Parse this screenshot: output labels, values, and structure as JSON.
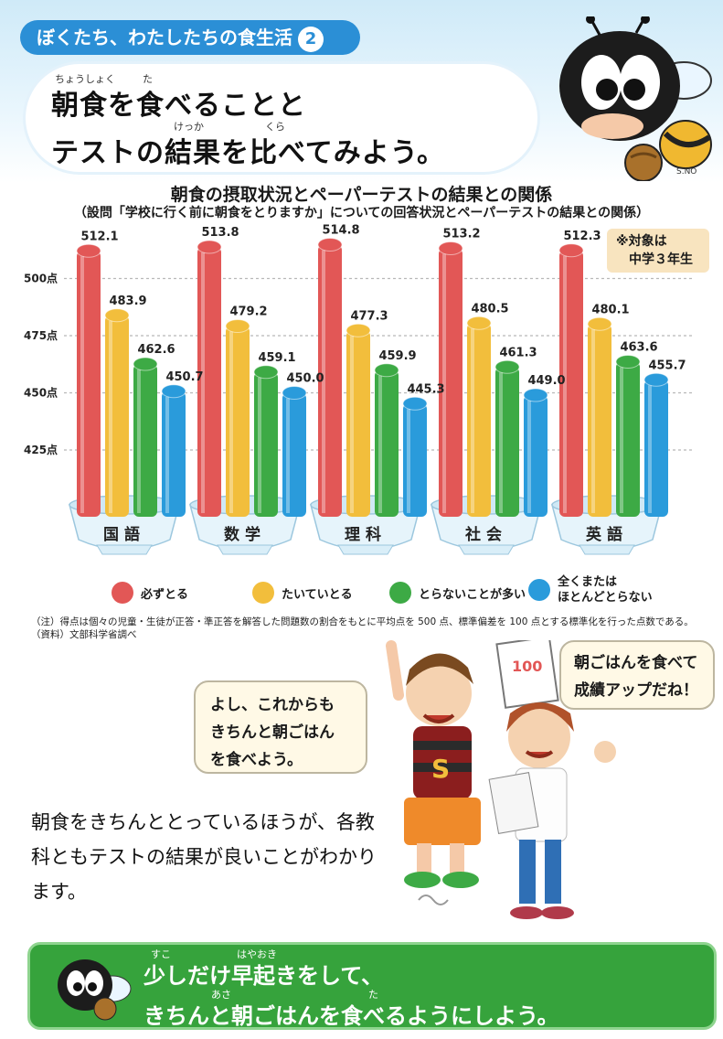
{
  "series_label": "ぼくたち、わたしたちの食生活",
  "series_number": "2",
  "headline": {
    "line1": "朝食を食べることと",
    "line2": "テストの結果を比べてみよう。",
    "ruby_choushoku": "ちょうしょく",
    "ruby_ta": "た",
    "ruby_kekka": "けっか",
    "ruby_kura": "くら"
  },
  "signature": "S.NO",
  "target_note": {
    "line1": "※対象は",
    "line2": "中学３年生"
  },
  "colors": {
    "sky": "#cfeaf8",
    "pill": "#2b8fd6",
    "series_red": "#e25756",
    "series_yellow": "#f2be3c",
    "series_green": "#3daa45",
    "series_blue": "#2a9bdb",
    "bowl": "#d9eef8",
    "band": "#36a33c",
    "bubble": "#fff9e6"
  },
  "chart_data": {
    "type": "bar",
    "title": "朝食の摂取状況とペーパーテストの結果との関係",
    "subtitle": "（設問「学校に行く前に朝食をとりますか」についての回答状況とペーパーテストの結果との関係）",
    "categories": [
      "国語",
      "数学",
      "理科",
      "社会",
      "英語"
    ],
    "series": [
      {
        "name": "必ずとる",
        "values": [
          512.1,
          513.8,
          514.8,
          513.2,
          512.3
        ]
      },
      {
        "name": "たいていとる",
        "values": [
          483.9,
          479.2,
          477.3,
          480.5,
          480.1
        ]
      },
      {
        "name": "とらないことが多い",
        "values": [
          462.6,
          459.1,
          459.9,
          461.3,
          463.6
        ]
      },
      {
        "name": "全くまたは ほとんどとらない",
        "values": [
          450.7,
          450.0,
          445.3,
          449.0,
          455.7
        ]
      }
    ],
    "yticks": [
      "500点",
      "475点",
      "450点",
      "425点"
    ],
    "ytick_values": [
      500,
      475,
      450,
      425
    ],
    "ylim": [
      400,
      520
    ],
    "grid": true,
    "legend": "bottom"
  },
  "legend_labels": [
    "必ずとる",
    "たいていとる",
    "とらないことが多い",
    "全くまたは",
    "ほとんどとらない"
  ],
  "notes": {
    "note1": "（注）得点は個々の児童・生徒が正答・準正答を解答した問題数の割合をもとに平均点を 500 点、標準偏差を 100 点とする標準化を行った点数である。",
    "note2": "（資料）文部科学省調べ"
  },
  "paper_score": "100",
  "bubble_boy": [
    "よし、これからも",
    "きちんと朝ごはん",
    "を食べよう。"
  ],
  "bubble_girl": [
    "朝ごはんを食べて",
    "成績アップだね！"
  ],
  "body_text": [
    "朝食をきちんととっているほうが、各教",
    "科ともテストの結果が良いことがわかり",
    "ます。"
  ],
  "bottom": {
    "line1": "少しだけ早起きをして、",
    "line2": "きちんと朝ごはんを食べるようにしよう。",
    "ruby_sukoshi": "すこ",
    "ruby_hayaoki": "はやおき",
    "ruby_asa": "あさ",
    "ruby_ta": "た"
  }
}
